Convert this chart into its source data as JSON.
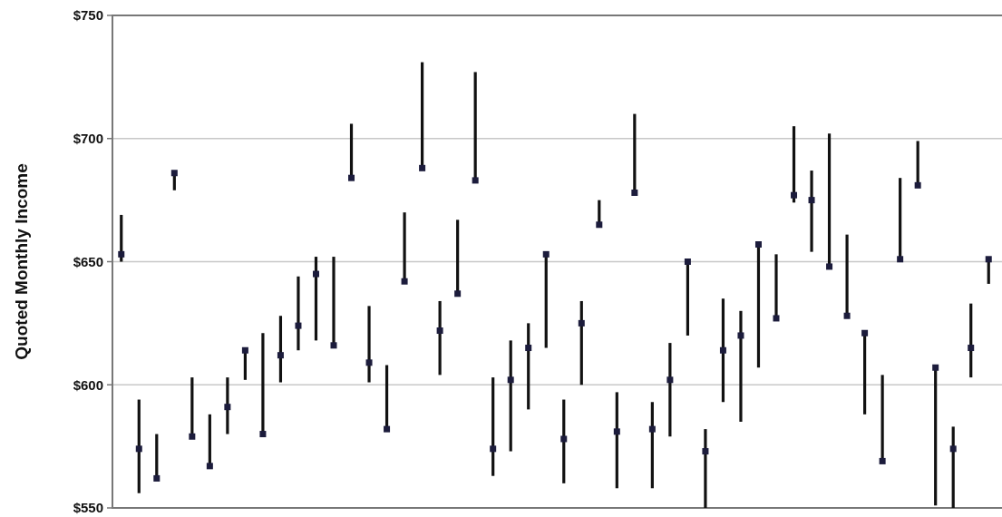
{
  "chart_data": {
    "type": "scatter",
    "ylabel": "Quoted Monthly Income",
    "categories": [
      null,
      null,
      null,
      null,
      null,
      null,
      null,
      null,
      null,
      null,
      null,
      null,
      null,
      null,
      null,
      null,
      null,
      null,
      null,
      null,
      null,
      null,
      null,
      null,
      null,
      null,
      null,
      null,
      null,
      null,
      null,
      null,
      null,
      null,
      null,
      null,
      null,
      null,
      null,
      null,
      null,
      null,
      null,
      null,
      null,
      null,
      null,
      null,
      null,
      null
    ],
    "values": [
      653,
      574,
      562,
      686,
      579,
      567,
      591,
      614,
      580,
      612,
      624,
      645,
      616,
      684,
      609,
      582,
      642,
      688,
      622,
      637,
      683,
      574,
      602,
      615,
      653,
      578,
      625,
      665,
      581,
      678,
      582,
      602,
      650,
      573,
      614,
      620,
      657,
      627,
      677,
      675,
      648,
      628,
      621,
      569,
      651,
      681,
      607,
      574,
      615,
      651
    ],
    "errors": [
      [
        650,
        669
      ],
      [
        556,
        594
      ],
      [
        562,
        580
      ],
      [
        679,
        686
      ],
      [
        579,
        603
      ],
      [
        567,
        588
      ],
      [
        580,
        603
      ],
      [
        602,
        614
      ],
      [
        580,
        621
      ],
      [
        601,
        628
      ],
      [
        614,
        644
      ],
      [
        618,
        652
      ],
      [
        616,
        652
      ],
      [
        684,
        706
      ],
      [
        601,
        632
      ],
      [
        582,
        608
      ],
      [
        642,
        670
      ],
      [
        688,
        731
      ],
      [
        604,
        634
      ],
      [
        637,
        667
      ],
      [
        683,
        727
      ],
      [
        563,
        603
      ],
      [
        573,
        618
      ],
      [
        590,
        625
      ],
      [
        615,
        653
      ],
      [
        560,
        594
      ],
      [
        600,
        634
      ],
      [
        665,
        675
      ],
      [
        558,
        597
      ],
      [
        678,
        710
      ],
      [
        558,
        593
      ],
      [
        579,
        617
      ],
      [
        620,
        650
      ],
      [
        550,
        582
      ],
      [
        593,
        635
      ],
      [
        585,
        630
      ],
      [
        607,
        657
      ],
      [
        627,
        653
      ],
      [
        674,
        705
      ],
      [
        654,
        687
      ],
      [
        648,
        702
      ],
      [
        628,
        661
      ],
      [
        588,
        621
      ],
      [
        569,
        604
      ],
      [
        651,
        684
      ],
      [
        681,
        699
      ],
      [
        551,
        607
      ],
      [
        550,
        583
      ],
      [
        603,
        633
      ],
      [
        641,
        651
      ]
    ],
    "color": "#1c1c3c",
    "marker": "square",
    "ylim": [
      550,
      750
    ],
    "yticks": [
      {
        "value": 550,
        "label": "$550"
      },
      {
        "value": 600,
        "label": "$600"
      },
      {
        "value": 650,
        "label": "$650"
      },
      {
        "value": 700,
        "label": "$700"
      },
      {
        "value": 750,
        "label": "$750"
      }
    ],
    "grid": "y",
    "tick_labels": "y"
  }
}
